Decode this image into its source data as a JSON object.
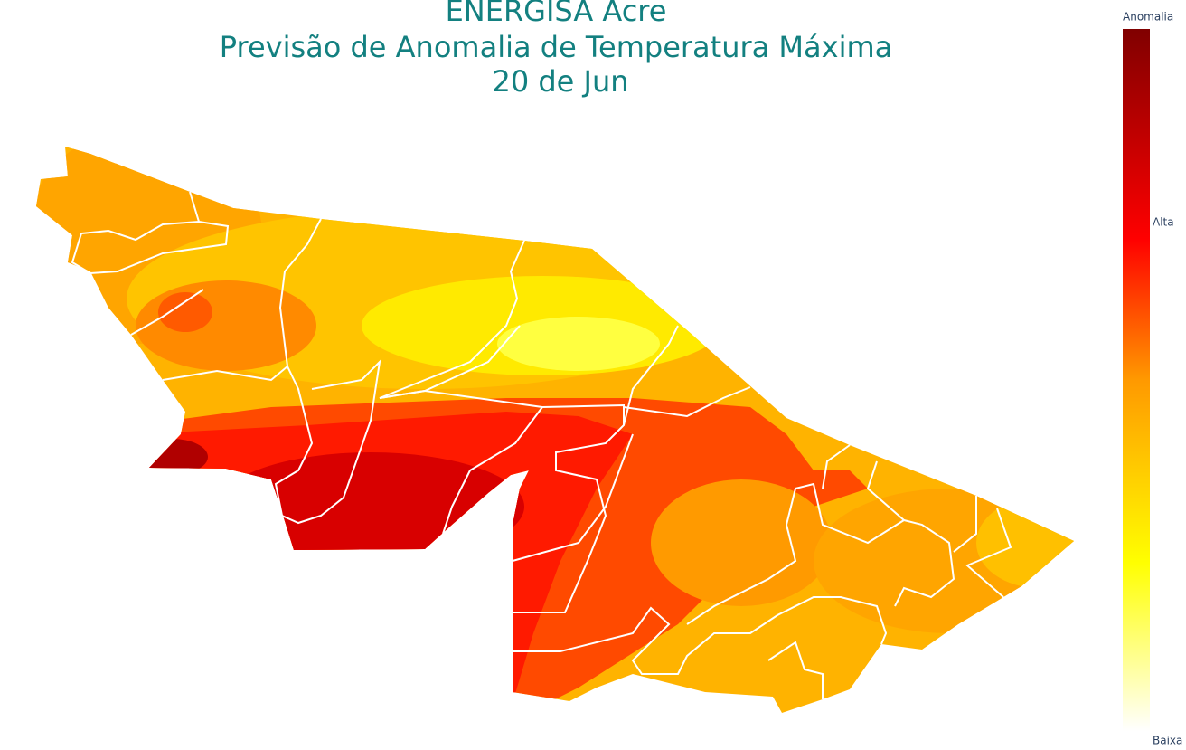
{
  "title": {
    "lines": [
      "ENERGISA Acre",
      "Previsão de Anomalia de Temperatura Máxima",
      "20 de Jun"
    ]
  },
  "colorbar": {
    "title": "Anomalia",
    "high_label": "Alta",
    "low_label": "Baixa"
  }
}
